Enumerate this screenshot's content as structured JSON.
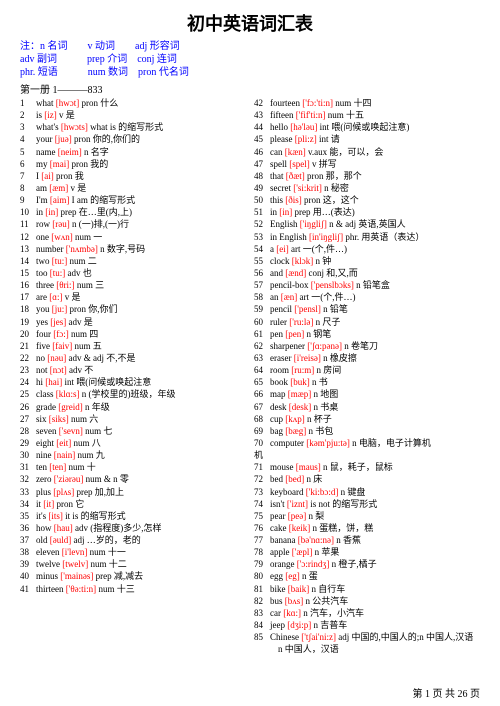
{
  "title": "初中英语词汇表",
  "legend": {
    "line1": "注：n 名词　　v 动词　　adj 形容词",
    "line2": "adv 副词　　　prep 介词　conj 连词",
    "line3": "phr. 短语　　　num 数词　pron 代名词"
  },
  "section": "第一册 1———833",
  "left": [
    {
      "n": "1",
      "w": "what",
      "p": "[hwɔt]",
      "c": "pron 什么"
    },
    {
      "n": "2",
      "w": "is",
      "p": "[iz]",
      "c": "v 是"
    },
    {
      "n": "3",
      "w": "what's",
      "p": "[hwɔts]",
      "c": "what is 的缩写形式"
    },
    {
      "n": "4",
      "w": "your",
      "p": "[juə]",
      "c": "pron 你的,你们的"
    },
    {
      "n": "5",
      "w": "name",
      "p": "[neim]",
      "c": "n 名字"
    },
    {
      "n": "6",
      "w": "my",
      "p": "[mai]",
      "c": "pron 我的"
    },
    {
      "n": "7",
      "w": "I",
      "p": "[ai]",
      "c": "pron 我"
    },
    {
      "n": "8",
      "w": "am",
      "p": "[æm]",
      "c": "v 是"
    },
    {
      "n": "9",
      "w": "I'm",
      "p": "[aim]",
      "c": "I am 的缩写形式"
    },
    {
      "n": "10",
      "w": "in",
      "p": "[in]",
      "c": "prep 在…里(内,上)"
    },
    {
      "n": "11",
      "w": "row",
      "p": "[rəu]",
      "c": "n (一)排,(一)行"
    },
    {
      "n": "12",
      "w": "one",
      "p": "[wʌn]",
      "c": "num 一"
    },
    {
      "n": "13",
      "w": "number",
      "p": "['nʌmbə]",
      "c": "n 数字,号码"
    },
    {
      "n": "14",
      "w": "two",
      "p": "[tu:]",
      "c": "num 二"
    },
    {
      "n": "15",
      "w": "too",
      "p": "[tu:]",
      "c": "adv 也"
    },
    {
      "n": "16",
      "w": "three",
      "p": "[θri:]",
      "c": "num 三"
    },
    {
      "n": "17",
      "w": "are",
      "p": "[ɑ:]",
      "c": "v 是"
    },
    {
      "n": "18",
      "w": "you",
      "p": "[ju:]",
      "c": "pron 你,你们"
    },
    {
      "n": "19",
      "w": "yes",
      "p": "[jes]",
      "c": "adv 是"
    },
    {
      "n": "20",
      "w": "four",
      "p": "[fɔ:]",
      "c": "num 四"
    },
    {
      "n": "21",
      "w": "five",
      "p": "[faiv]",
      "c": "num 五"
    },
    {
      "n": "22",
      "w": "no",
      "p": "[nəu]",
      "c": "adv & adj 不,不是"
    },
    {
      "n": "23",
      "w": "not",
      "p": "[nɔt]",
      "c": "adv 不"
    },
    {
      "n": "24",
      "w": "hi",
      "p": "[hai]",
      "c": "int 喂(问候或唤起注意"
    },
    {
      "n": "25",
      "w": "class",
      "p": "[klɑ:s]",
      "c": "n (学校里的)班级，年级"
    },
    {
      "n": "26",
      "w": "grade",
      "p": "[greid]",
      "c": "n 年级"
    },
    {
      "n": "27",
      "w": "six",
      "p": "[siks]",
      "c": "num 六"
    },
    {
      "n": "28",
      "w": "seven",
      "p": "['sevn]",
      "c": "num 七"
    },
    {
      "n": "29",
      "w": "eight",
      "p": "[eit]",
      "c": "num 八"
    },
    {
      "n": "30",
      "w": "nine",
      "p": "[nain]",
      "c": "num 九"
    },
    {
      "n": "31",
      "w": "ten",
      "p": "[ten]",
      "c": "num 十"
    },
    {
      "n": "32",
      "w": "zero",
      "p": "['ziərəu]",
      "c": "num & n 零"
    },
    {
      "n": "33",
      "w": "plus",
      "p": "[plʌs]",
      "c": "prep 加,加上"
    },
    {
      "n": "34",
      "w": "it",
      "p": "[it]",
      "c": "pron 它"
    },
    {
      "n": "35",
      "w": "it's",
      "p": "[its]",
      "c": "it is 的缩写形式"
    },
    {
      "n": "36",
      "w": "how",
      "p": "[hau]",
      "c": "adv (指程度)多少,怎样"
    },
    {
      "n": "37",
      "w": "old",
      "p": "[əuld]",
      "c": "adj …岁的，老的"
    },
    {
      "n": "38",
      "w": "eleven",
      "p": "[i'levn]",
      "c": "num 十一"
    },
    {
      "n": "39",
      "w": "twelve",
      "p": "[twelv]",
      "c": "num 十二"
    },
    {
      "n": "40",
      "w": "minus",
      "p": "['mainəs]",
      "c": "prep 减,减去"
    },
    {
      "n": "41",
      "w": "thirteen",
      "p": "['θə:ti:n]",
      "c": "num 十三"
    }
  ],
  "right": [
    {
      "n": "42",
      "w": "fourteen",
      "p": "['fɔ:'ti:n]",
      "c": "num 十四"
    },
    {
      "n": "43",
      "w": "fifteen",
      "p": "['fif'ti:n]",
      "c": "num 十五"
    },
    {
      "n": "44",
      "w": "hello",
      "p": "[hə'ləu]",
      "c": "int 喂(问候或唤起注意)"
    },
    {
      "n": "45",
      "w": "please",
      "p": "[pli:z]",
      "c": "int 请"
    },
    {
      "n": "46",
      "w": "can",
      "p": "[kæn]",
      "c": "v.aux 能，可以，会"
    },
    {
      "n": "47",
      "w": "spell",
      "p": "[spel]",
      "c": "v 拼写"
    },
    {
      "n": "48",
      "w": "that",
      "p": "[ðæt]",
      "c": "pron 那，那个"
    },
    {
      "n": "49",
      "w": "secret",
      "p": "['si:krit]",
      "c": "n 秘密"
    },
    {
      "n": "50",
      "w": "this",
      "p": "[ðis]",
      "c": "pron 这，这个"
    },
    {
      "n": "51",
      "w": "in",
      "p": "[in]",
      "c": "prep 用…(表达)"
    },
    {
      "n": "52",
      "w": "English",
      "p": "['iŋgliʃ]",
      "c": "n & adj 英语,英国人"
    },
    {
      "n": "53",
      "w": "in English",
      "p": "[in'iŋgliʃ]",
      "c": "phr. 用英语（表达）"
    },
    {
      "n": "54",
      "w": "a",
      "p": "[ei]",
      "c": "art 一(个,件…)"
    },
    {
      "n": "55",
      "w": "clock",
      "p": "[klɔk]",
      "c": "n 钟"
    },
    {
      "n": "56",
      "w": "and",
      "p": "[ænd]",
      "c": "conj 和,又,而"
    },
    {
      "n": "57",
      "w": "pencil-box",
      "p": "['penslbɔks]",
      "c": "n 铅笔盒"
    },
    {
      "n": "58",
      "w": "an",
      "p": "[æn]",
      "c": "art 一(个,件…)"
    },
    {
      "n": "59",
      "w": "pencil",
      "p": "['pensl]",
      "c": "n 铅笔"
    },
    {
      "n": "60",
      "w": "ruler",
      "p": "['ru:lə]",
      "c": "n 尺子"
    },
    {
      "n": "61",
      "w": "pen",
      "p": "[pen]",
      "c": "n 钢笔"
    },
    {
      "n": "62",
      "w": "sharpener",
      "p": "['ʃɑ:pənə]",
      "c": "n 卷笔刀"
    },
    {
      "n": "63",
      "w": "eraser",
      "p": "[i'reisə]",
      "c": "n 橡皮擦"
    },
    {
      "n": "64",
      "w": "room",
      "p": "[ru:m]",
      "c": "n 房间"
    },
    {
      "n": "65",
      "w": "book",
      "p": "[buk]",
      "c": "n 书"
    },
    {
      "n": "66",
      "w": "map",
      "p": "[mæp]",
      "c": "n 地图"
    },
    {
      "n": "67",
      "w": "desk",
      "p": "[desk]",
      "c": "n 书桌"
    },
    {
      "n": "68",
      "w": "cup",
      "p": "[kʌp]",
      "c": "n 杯子"
    },
    {
      "n": "69",
      "w": "bag",
      "p": "[bæg]",
      "c": "n 书包"
    },
    {
      "n": "70",
      "w": "computer",
      "p": "[kəm'pju:tə]",
      "c": "n 电脑，电子计算机",
      "wrap": true
    },
    {
      "n": "71",
      "w": "mouse",
      "p": "[maus]",
      "c": "n 鼠，耗子，鼠标"
    },
    {
      "n": "72",
      "w": "bed",
      "p": "[bed]",
      "c": "n 床"
    },
    {
      "n": "73",
      "w": "keyboard",
      "p": "['ki:bɔ:d]",
      "c": "n 键盘"
    },
    {
      "n": "74",
      "w": "isn't",
      "p": "['iznt]",
      "c": "is not 的缩写形式"
    },
    {
      "n": "75",
      "w": "pear",
      "p": "[peə]",
      "c": "n 梨"
    },
    {
      "n": "76",
      "w": "cake",
      "p": "[keik]",
      "c": "n 蛋糕，饼，糕"
    },
    {
      "n": "77",
      "w": "banana",
      "p": "[bə'nɑ:nə]",
      "c": "n 香蕉"
    },
    {
      "n": "78",
      "w": "apple",
      "p": "['æpl]",
      "c": "n 苹果"
    },
    {
      "n": "79",
      "w": "orange",
      "p": "['ɔ:rindʒ]",
      "c": "n 橙子,橘子"
    },
    {
      "n": "80",
      "w": "egg",
      "p": "[eg]",
      "c": "n 蛋"
    },
    {
      "n": "81",
      "w": "bike",
      "p": "[baik]",
      "c": "n 自行车"
    },
    {
      "n": "82",
      "w": "bus",
      "p": "[bʌs]",
      "c": "n 公共汽车"
    },
    {
      "n": "83",
      "w": "car",
      "p": "[kɑ:]",
      "c": "n 汽车，小汽车"
    },
    {
      "n": "84",
      "w": "jeep",
      "p": "[dʒi:p]",
      "c": "n 吉普车"
    },
    {
      "n": "85",
      "w": "Chinese",
      "p": "['tʃai'ni:z]",
      "c": "adj 中国的,中国人的;n 中国人,汉语",
      "extra": "n 中国人，汉语"
    }
  ],
  "footer": "第 1 页 共 26 页"
}
